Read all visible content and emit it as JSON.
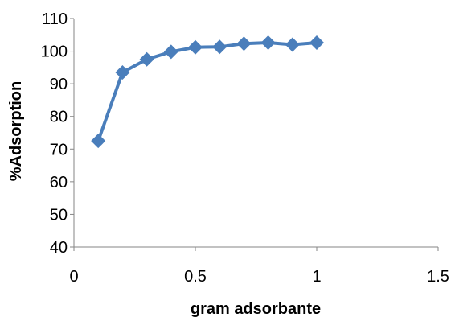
{
  "chart_data": {
    "type": "line",
    "title": "",
    "xlabel": "gram adsorbante",
    "ylabel": "%Adsorption",
    "xlim": [
      0,
      1.5
    ],
    "ylim": [
      40,
      110
    ],
    "xticks": [
      0,
      0.5,
      1,
      1.5
    ],
    "xtick_labels": [
      "0",
      "0.5",
      "1",
      "1.5"
    ],
    "yticks": [
      40,
      50,
      60,
      70,
      80,
      90,
      100,
      110
    ],
    "ytick_labels": [
      "40",
      "50",
      "60",
      "70",
      "80",
      "90",
      "100",
      "110"
    ],
    "grid": false,
    "legend": "none",
    "marker": "diamond",
    "color": "#4a7ebb",
    "series": [
      {
        "x": [
          0.1,
          0.2,
          0.3,
          0.4,
          0.5,
          0.6,
          0.7,
          0.8,
          0.9,
          1.0
        ],
        "y": [
          72.5,
          93.5,
          97.5,
          99.8,
          101.2,
          101.3,
          102.3,
          102.6,
          102.0,
          102.6
        ]
      }
    ]
  }
}
